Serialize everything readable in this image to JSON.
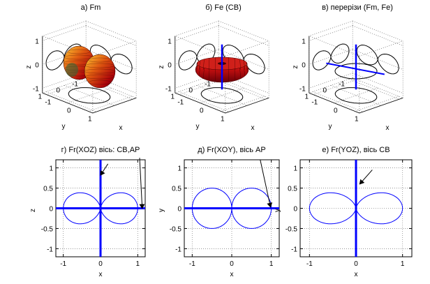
{
  "panels_3d": [
    {
      "title": "а) Fm",
      "zlabel": "z",
      "ylabel": "y",
      "xlabel": "x",
      "z_ticks": [
        "1",
        "0",
        "-1"
      ],
      "y_ticks": [
        "1",
        "0",
        "-1"
      ],
      "x_ticks": [
        "-1",
        "0",
        "1"
      ],
      "surface": "dipole-lobes-along-x"
    },
    {
      "title": "б) Fe (CB)",
      "zlabel": "z",
      "ylabel": "y",
      "xlabel": "x",
      "z_ticks": [
        "1",
        "0",
        "-1"
      ],
      "y_ticks": [
        "1",
        "0",
        "-1"
      ],
      "x_ticks": [
        "-1",
        "0",
        "1"
      ],
      "surface": "torus-around-z",
      "axis_line": "z"
    },
    {
      "title": "в) перерізи (Fm, Fe)",
      "zlabel": "z",
      "ylabel": "y",
      "xlabel": "x",
      "z_ticks": [
        "1",
        "0",
        "-1"
      ],
      "y_ticks": [
        "1",
        "0",
        "-1"
      ],
      "x_ticks": [
        "-1",
        "0",
        "1"
      ],
      "surface": "cross-sections",
      "axis_line": "z-and-x"
    }
  ],
  "chart_data": [
    {
      "type": "line",
      "title": "г) Fr(XOZ) вісь: CB,AP",
      "xlabel": "x",
      "ylabel": "z",
      "xlim": [
        -1.2,
        1.2
      ],
      "ylim": [
        -1.2,
        1.2
      ],
      "x_ticks": [
        -1,
        0,
        1
      ],
      "y_ticks": [
        -1,
        -0.5,
        0,
        0.5,
        1
      ],
      "x_tick_labels": [
        "-1",
        "0",
        "1"
      ],
      "y_tick_labels": [
        "-1",
        "-0.5",
        "0",
        "0.5",
        "1"
      ],
      "curve": "figure-eight along x",
      "curve_extent": 1.0,
      "axis_lines": [
        "x",
        "z"
      ],
      "line_color": "#0000ff",
      "axis_color": "#0000ff",
      "arrows": [
        {
          "from": [
            0.2,
            1.1
          ],
          "to": [
            0.0,
            0.82
          ]
        },
        {
          "from": [
            1.05,
            1.25
          ],
          "to": [
            1.12,
            0.0
          ]
        }
      ]
    },
    {
      "type": "line",
      "title": "д) Fr(XOY), вісь AP",
      "xlabel": "x",
      "ylabel": "y",
      "xlim": [
        -1.2,
        1.2
      ],
      "ylim": [
        -1.2,
        1.2
      ],
      "x_ticks": [
        -1,
        0,
        1
      ],
      "y_ticks": [
        -1,
        -0.5,
        0,
        0.5,
        1
      ],
      "x_tick_labels": [
        "-1",
        "0",
        "1"
      ],
      "y_tick_labels": [
        "-1",
        "-0.5",
        "0",
        "0.5",
        "1"
      ],
      "curve": "two circles along x",
      "curve_extent": 1.0,
      "axis_lines": [
        "x"
      ],
      "line_color": "#0000ff",
      "axis_color": "#0000ff",
      "arrows": [
        {
          "from": [
            0.72,
            1.2
          ],
          "to": [
            0.98,
            0.03
          ]
        }
      ]
    },
    {
      "type": "line",
      "title": "е) Fr(YOZ), вісь CB",
      "xlabel": "x",
      "ylabel": "y",
      "xlim": [
        -1.2,
        1.2
      ],
      "ylim": [
        -1.2,
        1.2
      ],
      "x_ticks": [
        -1,
        0,
        1
      ],
      "y_ticks": [
        -1,
        -0.5,
        0,
        0.5,
        1
      ],
      "x_tick_labels": [
        "-1",
        "0",
        "1"
      ],
      "y_tick_labels": [
        "-1",
        "-0.5",
        "0",
        "0.5",
        "1"
      ],
      "curve": "figure-eight along x",
      "curve_extent": 1.0,
      "axis_lines": [
        "y"
      ],
      "line_color": "#0000ff",
      "axis_color": "#0000ff",
      "arrows": [
        {
          "from": [
            0.35,
            0.95
          ],
          "to": [
            0.08,
            0.6
          ]
        }
      ]
    }
  ]
}
